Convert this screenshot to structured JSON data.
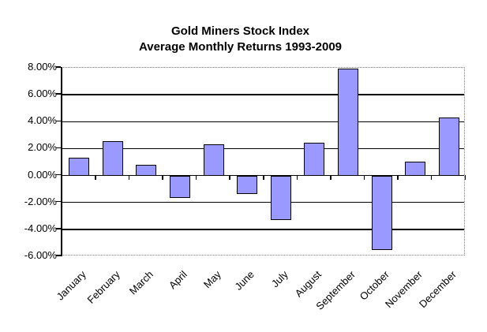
{
  "chart_data": {
    "type": "bar",
    "title": "Gold Miners Stock Index",
    "subtitle": "Average Monthly Returns 1993-2009",
    "categories": [
      "January",
      "February",
      "March",
      "April",
      "May",
      "June",
      "July",
      "August",
      "September",
      "October",
      "November",
      "December"
    ],
    "values": [
      1.3,
      2.55,
      0.8,
      -1.65,
      2.3,
      -1.4,
      -3.3,
      2.45,
      7.95,
      -5.55,
      1.05,
      4.3
    ],
    "value_unit": "percent",
    "xlabel": "",
    "ylabel": "",
    "ylim": [
      -6,
      8
    ],
    "ytick_step": 2,
    "y_ticks": [
      {
        "label": "8.00%",
        "value": 8
      },
      {
        "label": "6.00%",
        "value": 6
      },
      {
        "label": "4.00%",
        "value": 4
      },
      {
        "label": "2.00%",
        "value": 2
      },
      {
        "label": "0.00%",
        "value": 0
      },
      {
        "label": "-2.00%",
        "value": -2
      },
      {
        "label": "-4.00%",
        "value": -4
      },
      {
        "label": "-6.00%",
        "value": -6
      }
    ],
    "grid": "horizontal",
    "legend": "none",
    "bar_color": "#9999FF",
    "bar_border_color": "#000000",
    "gridline_color": "#000000",
    "plot_border_color": "#808080"
  }
}
